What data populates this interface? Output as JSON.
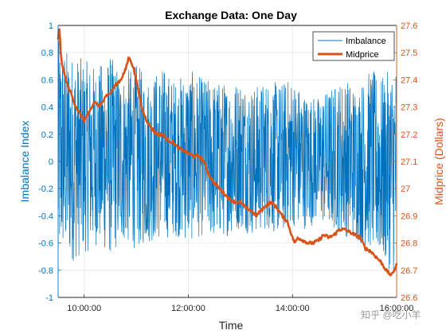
{
  "chart_data": {
    "type": "line",
    "title": "Exchange Data: One Day",
    "xlabel": "Time",
    "ylabel_left": "Imbalance Index",
    "ylabel_right": "Midprice (Dollars)",
    "x_range_hours": [
      9.5,
      16.0
    ],
    "x_ticks": [
      {
        "hour": 10,
        "label": "10:00:00"
      },
      {
        "hour": 12,
        "label": "12:00:00"
      },
      {
        "hour": 14,
        "label": "14:00:00"
      },
      {
        "hour": 16,
        "label": "16:00:00"
      }
    ],
    "ylim_left": [
      -1,
      1
    ],
    "yticks_left": [
      "1",
      "0.8",
      "0.6",
      "0.4",
      "0.2",
      "0",
      "-0.2",
      "-0.4",
      "-0.6",
      "-0.8",
      "-1"
    ],
    "ylim_right": [
      26.6,
      27.6
    ],
    "yticks_right": [
      "27.6",
      "27.5",
      "27.4",
      "27.3",
      "27.2",
      "27.1",
      "27",
      "26.9",
      "26.8",
      "26.7",
      "26.6"
    ],
    "grid": true,
    "legend_position": "top-right",
    "colors": {
      "imbalance": "#0072BD",
      "midprice": "#D95319",
      "axis": "#262626"
    },
    "series": [
      {
        "name": "Imbalance",
        "axis": "left",
        "color": "#0072BD",
        "envelope": {
          "x": [
            9.5,
            9.6,
            9.75,
            10.0,
            10.25,
            10.5,
            10.75,
            11.0,
            11.25,
            11.5,
            11.75,
            12.0,
            12.25,
            12.5,
            12.75,
            13.0,
            13.25,
            13.5,
            13.75,
            14.0,
            14.25,
            14.5,
            14.75,
            15.0,
            15.25,
            15.5,
            15.75,
            16.0
          ],
          "max": [
            0.9,
            0.85,
            0.8,
            0.75,
            0.7,
            0.78,
            0.65,
            0.72,
            0.62,
            0.7,
            0.6,
            0.68,
            0.62,
            0.6,
            0.58,
            0.62,
            0.55,
            0.6,
            0.58,
            0.62,
            0.5,
            0.48,
            0.55,
            0.62,
            0.55,
            0.68,
            0.62,
            0.75
          ],
          "min": [
            -0.8,
            -0.7,
            -0.75,
            -0.68,
            -0.62,
            -0.7,
            -0.6,
            -0.65,
            -0.6,
            -0.58,
            -0.55,
            -0.6,
            -0.55,
            -0.58,
            -0.55,
            -0.5,
            -0.55,
            -0.5,
            -0.55,
            -0.48,
            -0.5,
            -0.45,
            -0.5,
            -0.55,
            -0.6,
            -0.65,
            -0.75,
            -0.85
          ]
        }
      },
      {
        "name": "Midprice",
        "axis": "right",
        "color": "#D95319",
        "x": [
          9.5,
          9.52,
          9.55,
          9.58,
          9.62,
          9.68,
          9.75,
          9.8,
          9.85,
          9.9,
          10.0,
          10.1,
          10.2,
          10.3,
          10.4,
          10.5,
          10.6,
          10.7,
          10.8,
          10.85,
          10.9,
          10.95,
          11.0,
          11.05,
          11.1,
          11.2,
          11.3,
          11.4,
          11.5,
          11.6,
          11.7,
          11.8,
          11.9,
          12.0,
          12.1,
          12.2,
          12.3,
          12.4,
          12.5,
          12.6,
          12.7,
          12.8,
          12.9,
          13.0,
          13.1,
          13.2,
          13.3,
          13.4,
          13.5,
          13.6,
          13.7,
          13.8,
          13.9,
          14.0,
          14.05,
          14.1,
          14.2,
          14.3,
          14.4,
          14.5,
          14.6,
          14.7,
          14.8,
          14.9,
          15.0,
          15.1,
          15.2,
          15.3,
          15.4,
          15.5,
          15.6,
          15.7,
          15.8,
          15.9,
          16.0
        ],
        "y": [
          27.55,
          27.6,
          27.5,
          27.45,
          27.42,
          27.38,
          27.35,
          27.32,
          27.3,
          27.28,
          27.25,
          27.28,
          27.32,
          27.3,
          27.34,
          27.35,
          27.38,
          27.4,
          27.44,
          27.48,
          27.47,
          27.44,
          27.4,
          27.35,
          27.3,
          27.25,
          27.22,
          27.2,
          27.2,
          27.18,
          27.17,
          27.15,
          27.14,
          27.13,
          27.12,
          27.12,
          27.1,
          27.05,
          27.02,
          27.0,
          26.98,
          26.96,
          26.95,
          26.95,
          26.93,
          26.92,
          26.9,
          26.92,
          26.94,
          26.95,
          26.93,
          26.9,
          26.88,
          26.82,
          26.8,
          26.82,
          26.81,
          26.8,
          26.8,
          26.81,
          26.83,
          26.82,
          26.83,
          26.85,
          26.85,
          26.84,
          26.83,
          26.82,
          26.78,
          26.77,
          26.75,
          26.73,
          26.7,
          26.68,
          26.72
        ]
      }
    ]
  },
  "watermark": "知乎 @吃小羊"
}
